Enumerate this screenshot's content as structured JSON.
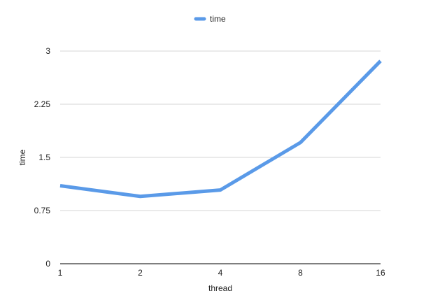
{
  "chart_data": {
    "type": "line",
    "title": "",
    "xlabel": "thread",
    "ylabel": "time",
    "categories": [
      "1",
      "2",
      "4",
      "8",
      "16"
    ],
    "ylim": [
      0,
      3
    ],
    "yticks": [
      "0",
      "0.75",
      "1.5",
      "2.25",
      "3"
    ],
    "grid": true,
    "legend_position": "top",
    "series": [
      {
        "name": "time",
        "color": "#5a9ae8",
        "values": [
          1.1,
          0.95,
          1.04,
          1.71,
          2.86
        ]
      }
    ]
  }
}
